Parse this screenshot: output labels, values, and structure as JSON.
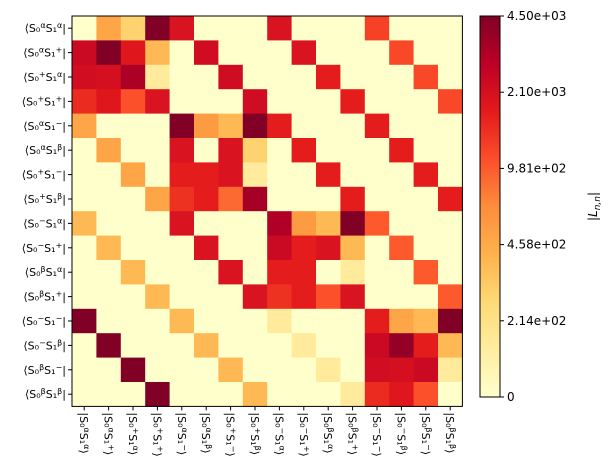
{
  "chart_data": {
    "type": "heatmap",
    "title": "",
    "row_labels": [
      "⟨S₀^αS₁^α|",
      "⟨S₀^αS₁^+|",
      "⟨S₀^+S₁^α|",
      "⟨S₀^+S₁^+|",
      "⟨S₀^αS₁^−|",
      "⟨S₀^αS₁^β|",
      "⟨S₀^+S₁^−|",
      "⟨S₀^+S₁^β|",
      "⟨S₀^−S₁^α|",
      "⟨S₀^−S₁^+|",
      "⟨S₀^βS₁^α|",
      "⟨S₀^βS₁^+|",
      "⟨S₀^−S₁^−|",
      "⟨S₀^−S₁^β|",
      "⟨S₀^βS₁^−|",
      "⟨S₀^βS₁^β|"
    ],
    "col_labels": [
      "|S₀^αS₁^α⟩",
      "|S₀^αS₁^+⟩",
      "|S₀^+S₁^α⟩",
      "|S₀^+S₁^+⟩",
      "|S₀^αS₁^−⟩",
      "|S₀^αS₁^β⟩",
      "|S₀^+S₁^−⟩",
      "|S₀^+S₁^β⟩",
      "|S₀^−S₁^α⟩",
      "|S₀^−S₁^+⟩",
      "|S₀^βS₁^α⟩",
      "|S₀^βS₁^+⟩",
      "|S₀^−S₁^−⟩",
      "|S₀^−S₁^β⟩",
      "|S₀^βS₁^−⟩",
      "|S₀^βS₁^β⟩"
    ],
    "values": [
      [
        0,
        500,
        300,
        4500,
        2000,
        0,
        0,
        0,
        2000,
        0,
        0,
        0,
        1300,
        0,
        0,
        0
      ],
      [
        2500,
        4500,
        1900,
        400,
        0,
        2300,
        0,
        0,
        0,
        2000,
        0,
        0,
        0,
        1200,
        0,
        0
      ],
      [
        2200,
        2100,
        3400,
        150,
        0,
        0,
        2300,
        0,
        0,
        0,
        1800,
        0,
        0,
        0,
        1200,
        0
      ],
      [
        1600,
        1900,
        1100,
        2000,
        0,
        0,
        0,
        2300,
        0,
        0,
        0,
        1800,
        0,
        0,
        0,
        1200
      ],
      [
        500,
        0,
        0,
        0,
        4500,
        600,
        400,
        4500,
        1800,
        0,
        0,
        0,
        1800,
        0,
        0,
        0
      ],
      [
        0,
        500,
        0,
        0,
        2000,
        0,
        2000,
        300,
        0,
        1800,
        0,
        0,
        0,
        1800,
        0,
        0
      ],
      [
        0,
        0,
        500,
        0,
        1800,
        1800,
        2000,
        150,
        0,
        0,
        1800,
        0,
        0,
        0,
        1800,
        0
      ],
      [
        0,
        0,
        0,
        500,
        1500,
        1800,
        900,
        3600,
        0,
        0,
        0,
        1800,
        0,
        0,
        0,
        1800
      ],
      [
        400,
        0,
        0,
        0,
        2000,
        0,
        0,
        0,
        3300,
        600,
        400,
        4500,
        1000,
        0,
        0,
        0
      ],
      [
        0,
        400,
        0,
        0,
        0,
        2000,
        0,
        0,
        2500,
        1800,
        2000,
        400,
        0,
        1000,
        0,
        0
      ],
      [
        0,
        0,
        400,
        0,
        0,
        0,
        2000,
        0,
        1800,
        1800,
        0,
        150,
        0,
        0,
        1000,
        0
      ],
      [
        0,
        0,
        0,
        400,
        0,
        0,
        0,
        2000,
        1500,
        1800,
        1100,
        2000,
        0,
        0,
        0,
        1000
      ],
      [
        4500,
        0,
        0,
        0,
        400,
        0,
        0,
        0,
        150,
        0,
        0,
        0,
        1800,
        500,
        400,
        4500
      ],
      [
        0,
        4500,
        0,
        0,
        0,
        400,
        0,
        0,
        0,
        150,
        0,
        0,
        2500,
        4000,
        1800,
        400
      ],
      [
        0,
        0,
        4500,
        0,
        0,
        0,
        400,
        0,
        0,
        0,
        150,
        0,
        2200,
        2100,
        2500,
        150
      ],
      [
        0,
        0,
        0,
        4500,
        0,
        0,
        0,
        400,
        0,
        0,
        0,
        150,
        1600,
        1900,
        1100,
        0
      ]
    ],
    "colorbar": {
      "label": "|L_n,n|",
      "tick_values": [
        0,
        214,
        458,
        981,
        2100,
        4500
      ],
      "tick_labels": [
        "0",
        "2.14e+02",
        "4.58e+02",
        "9.81e+02",
        "2.10e+03",
        "4.50e+03"
      ]
    },
    "colormap": [
      "#ffffcc",
      "#ffeda0",
      "#fed976",
      "#feb24c",
      "#fd8d3c",
      "#fc4e2a",
      "#e31a1c",
      "#bd0026",
      "#800026"
    ]
  }
}
